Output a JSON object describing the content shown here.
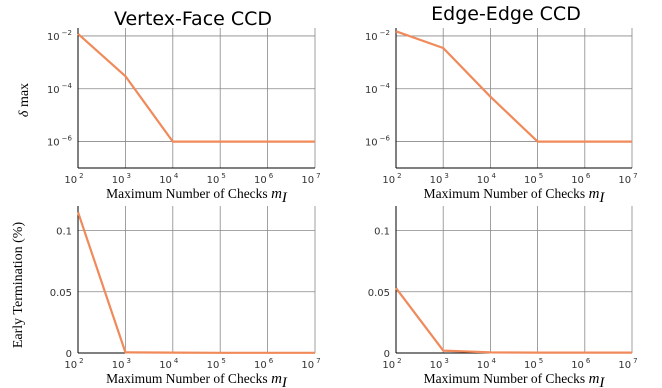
{
  "chart_data": [
    {
      "type": "line",
      "title": "Vertex-Face CCD",
      "xlabel": "Maximum Number of Checks",
      "xlabel_symbol": "m",
      "xlabel_subscript": "I",
      "ylabel": "max",
      "ylabel_symbol": "δ",
      "xscale": "log",
      "yscale": "log",
      "xlim_exp": [
        2,
        7
      ],
      "ylim_exp": [
        -7,
        -1.7
      ],
      "x_ticks": [
        {
          "base": "10",
          "exp": "2"
        },
        {
          "base": "10",
          "exp": "3"
        },
        {
          "base": "10",
          "exp": "4"
        },
        {
          "base": "10",
          "exp": "5"
        },
        {
          "base": "10",
          "exp": "6"
        },
        {
          "base": "10",
          "exp": "7"
        }
      ],
      "y_ticks": [
        {
          "base": "10",
          "exp": "−2",
          "value_exp": -2
        },
        {
          "base": "10",
          "exp": "−4",
          "value_exp": -4
        },
        {
          "base": "10",
          "exp": "−6",
          "value_exp": -6
        }
      ],
      "grid": true,
      "color": "#f08a5a",
      "x": [
        100,
        1000,
        10000,
        100000,
        1000000,
        10000000
      ],
      "y": [
        0.012,
        0.0003,
        1e-06,
        1e-06,
        1e-06,
        1e-06
      ]
    },
    {
      "type": "line",
      "title": "Edge-Edge CCD",
      "xlabel": "Maximum Number of Checks",
      "xlabel_symbol": "m",
      "xlabel_subscript": "I",
      "xscale": "log",
      "yscale": "log",
      "xlim_exp": [
        2,
        7
      ],
      "ylim_exp": [
        -7,
        -1.7
      ],
      "x_ticks": [
        {
          "base": "10",
          "exp": "2"
        },
        {
          "base": "10",
          "exp": "3"
        },
        {
          "base": "10",
          "exp": "4"
        },
        {
          "base": "10",
          "exp": "5"
        },
        {
          "base": "10",
          "exp": "6"
        },
        {
          "base": "10",
          "exp": "7"
        }
      ],
      "y_ticks": [
        {
          "base": "10",
          "exp": "−2",
          "value_exp": -2
        },
        {
          "base": "10",
          "exp": "−4",
          "value_exp": -4
        },
        {
          "base": "10",
          "exp": "−6",
          "value_exp": -6
        }
      ],
      "grid": true,
      "color": "#f08a5a",
      "x": [
        100,
        1000,
        10000,
        100000,
        1000000,
        10000000
      ],
      "y": [
        0.015,
        0.0035,
        5e-05,
        1e-06,
        1e-06,
        1e-06
      ]
    },
    {
      "type": "line",
      "xlabel": "Maximum Number of Checks",
      "xlabel_symbol": "m",
      "xlabel_subscript": "I",
      "ylabel": "Early Termination (%)",
      "xscale": "log",
      "yscale": "linear",
      "xlim_exp": [
        2,
        7
      ],
      "ylim": [
        0,
        0.12
      ],
      "x_ticks": [
        {
          "base": "10",
          "exp": "2"
        },
        {
          "base": "10",
          "exp": "3"
        },
        {
          "base": "10",
          "exp": "4"
        },
        {
          "base": "10",
          "exp": "5"
        },
        {
          "base": "10",
          "exp": "6"
        },
        {
          "base": "10",
          "exp": "7"
        }
      ],
      "y_ticks": [
        {
          "label": "0",
          "value": 0
        },
        {
          "label": "0.05",
          "value": 0.05
        },
        {
          "label": "0.1",
          "value": 0.1
        }
      ],
      "grid": true,
      "color": "#f08a5a",
      "x": [
        100,
        1000,
        10000,
        100000,
        1000000,
        10000000
      ],
      "y": [
        0.115,
        0.0005,
        0.0003,
        0.0002,
        0.0002,
        0.0002
      ]
    },
    {
      "type": "line",
      "xlabel": "Maximum Number of Checks",
      "xlabel_symbol": "m",
      "xlabel_subscript": "I",
      "xscale": "log",
      "yscale": "linear",
      "xlim_exp": [
        2,
        7
      ],
      "ylim": [
        0,
        0.12
      ],
      "x_ticks": [
        {
          "base": "10",
          "exp": "2"
        },
        {
          "base": "10",
          "exp": "3"
        },
        {
          "base": "10",
          "exp": "4"
        },
        {
          "base": "10",
          "exp": "5"
        },
        {
          "base": "10",
          "exp": "6"
        },
        {
          "base": "10",
          "exp": "7"
        }
      ],
      "y_ticks": [
        {
          "label": "0",
          "value": 0
        },
        {
          "label": "0.05",
          "value": 0.05
        },
        {
          "label": "0.1",
          "value": 0.1
        }
      ],
      "grid": true,
      "color": "#f08a5a",
      "x": [
        100,
        1000,
        10000,
        100000,
        1000000,
        10000000
      ],
      "y": [
        0.053,
        0.002,
        0.0005,
        0.0003,
        0.0003,
        0.0003
      ]
    }
  ]
}
